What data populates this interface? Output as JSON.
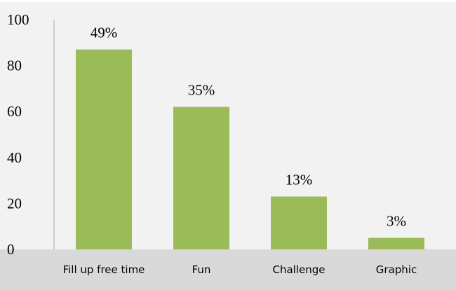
{
  "chart_data": {
    "type": "bar",
    "title": "",
    "xlabel": "",
    "ylabel": "",
    "categories": [
      "Fill up free time",
      "Fun",
      "Challenge",
      "Graphic"
    ],
    "values": [
      87,
      62,
      23,
      5
    ],
    "data_labels": [
      "49%",
      "35%",
      "13%",
      "3%"
    ],
    "ylim": [
      0,
      100
    ],
    "yticks": [
      0,
      20,
      40,
      60,
      80,
      100
    ],
    "ytick_labels": [
      "0",
      "20",
      "40",
      "60",
      "80",
      "100"
    ],
    "grid": false,
    "legend": "none",
    "colors": {
      "bar": "#9bbb59",
      "plot_background": "#f2f2f2",
      "category_band": "#d9d9d9",
      "axis": "#a6a6a6"
    }
  }
}
